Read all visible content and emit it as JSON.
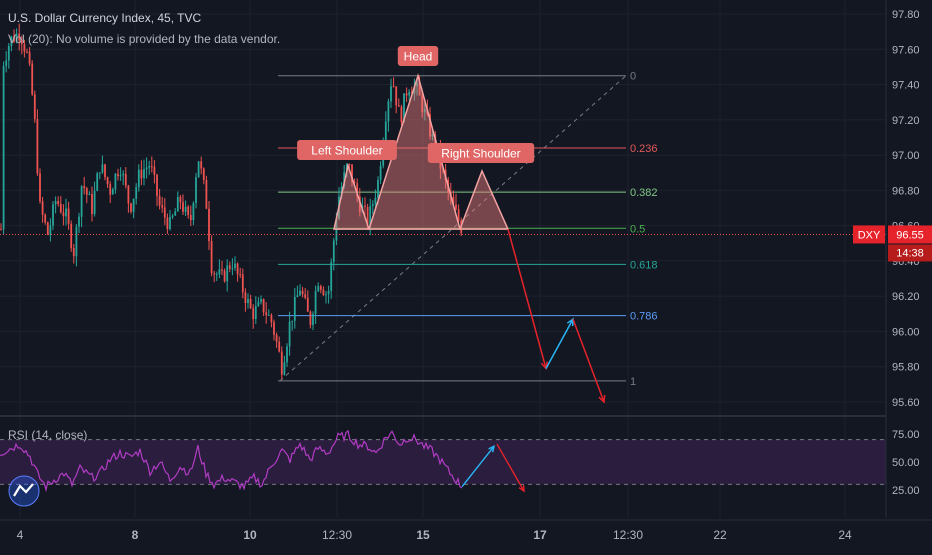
{
  "header": {
    "title": "U.S. Dollar Currency Index, 45, TVC",
    "volume_note": "Vol (20): No volume is provided by the data vendor."
  },
  "colors": {
    "background": "#131722",
    "grid": "#1e222d",
    "up_candle": "#26a69a",
    "down_candle": "#ef5350",
    "pattern_fill": "#f08080",
    "label_bg": "#e06666",
    "rsi_line": "#b33cc6",
    "rsi_band": "#2a1d3d",
    "arrow_down": "#e6232b",
    "arrow_up": "#29b6f6"
  },
  "chart_data": {
    "type": "candlestick",
    "price_axis": {
      "ticks": [
        "97.80",
        "97.60",
        "97.40",
        "97.20",
        "97.00",
        "96.80",
        "96.60",
        "96.40",
        "96.20",
        "96.00",
        "95.80",
        "95.60"
      ],
      "range": [
        95.52,
        97.85
      ]
    },
    "time_axis": {
      "ticks": [
        "4",
        "8",
        "10",
        "12:30",
        "15",
        "17",
        "12:30",
        "22",
        "24"
      ]
    },
    "price_tag": {
      "symbol": "DXY",
      "price": "96.55",
      "countdown": "14:38"
    },
    "fibonacci": {
      "high": 97.45,
      "low": 95.72,
      "levels": [
        {
          "label": "0",
          "value": 97.45,
          "color": "#787b86"
        },
        {
          "label": "0.236",
          "value": 97.04,
          "color": "#e05a5a"
        },
        {
          "label": "0.382",
          "value": 96.79,
          "color": "#81c784"
        },
        {
          "label": "0.5",
          "value": 96.585,
          "color": "#4caf50"
        },
        {
          "label": "0.618",
          "value": 96.38,
          "color": "#26a69a"
        },
        {
          "label": "0.786",
          "value": 96.09,
          "color": "#5b9cf6"
        },
        {
          "label": "1",
          "value": 95.72,
          "color": "#787b86"
        }
      ]
    },
    "pattern": {
      "name": "Head and Shoulders",
      "labels": {
        "left": "Left Shoulder",
        "head": "Head",
        "right": "Right Shoulder"
      },
      "neckline": 96.58,
      "left_shoulder_peak": 96.94,
      "head_peak": 97.45,
      "right_shoulder_peak": 96.91
    },
    "projection": {
      "down_to": 95.79,
      "bounce_to": 96.07,
      "final": 95.6
    },
    "rsi": {
      "title": "RSI (14, close)",
      "ticks": [
        "75.00",
        "50.00",
        "25.00"
      ],
      "upper_band": 70,
      "lower_band": 30,
      "range": [
        15,
        80
      ]
    }
  }
}
